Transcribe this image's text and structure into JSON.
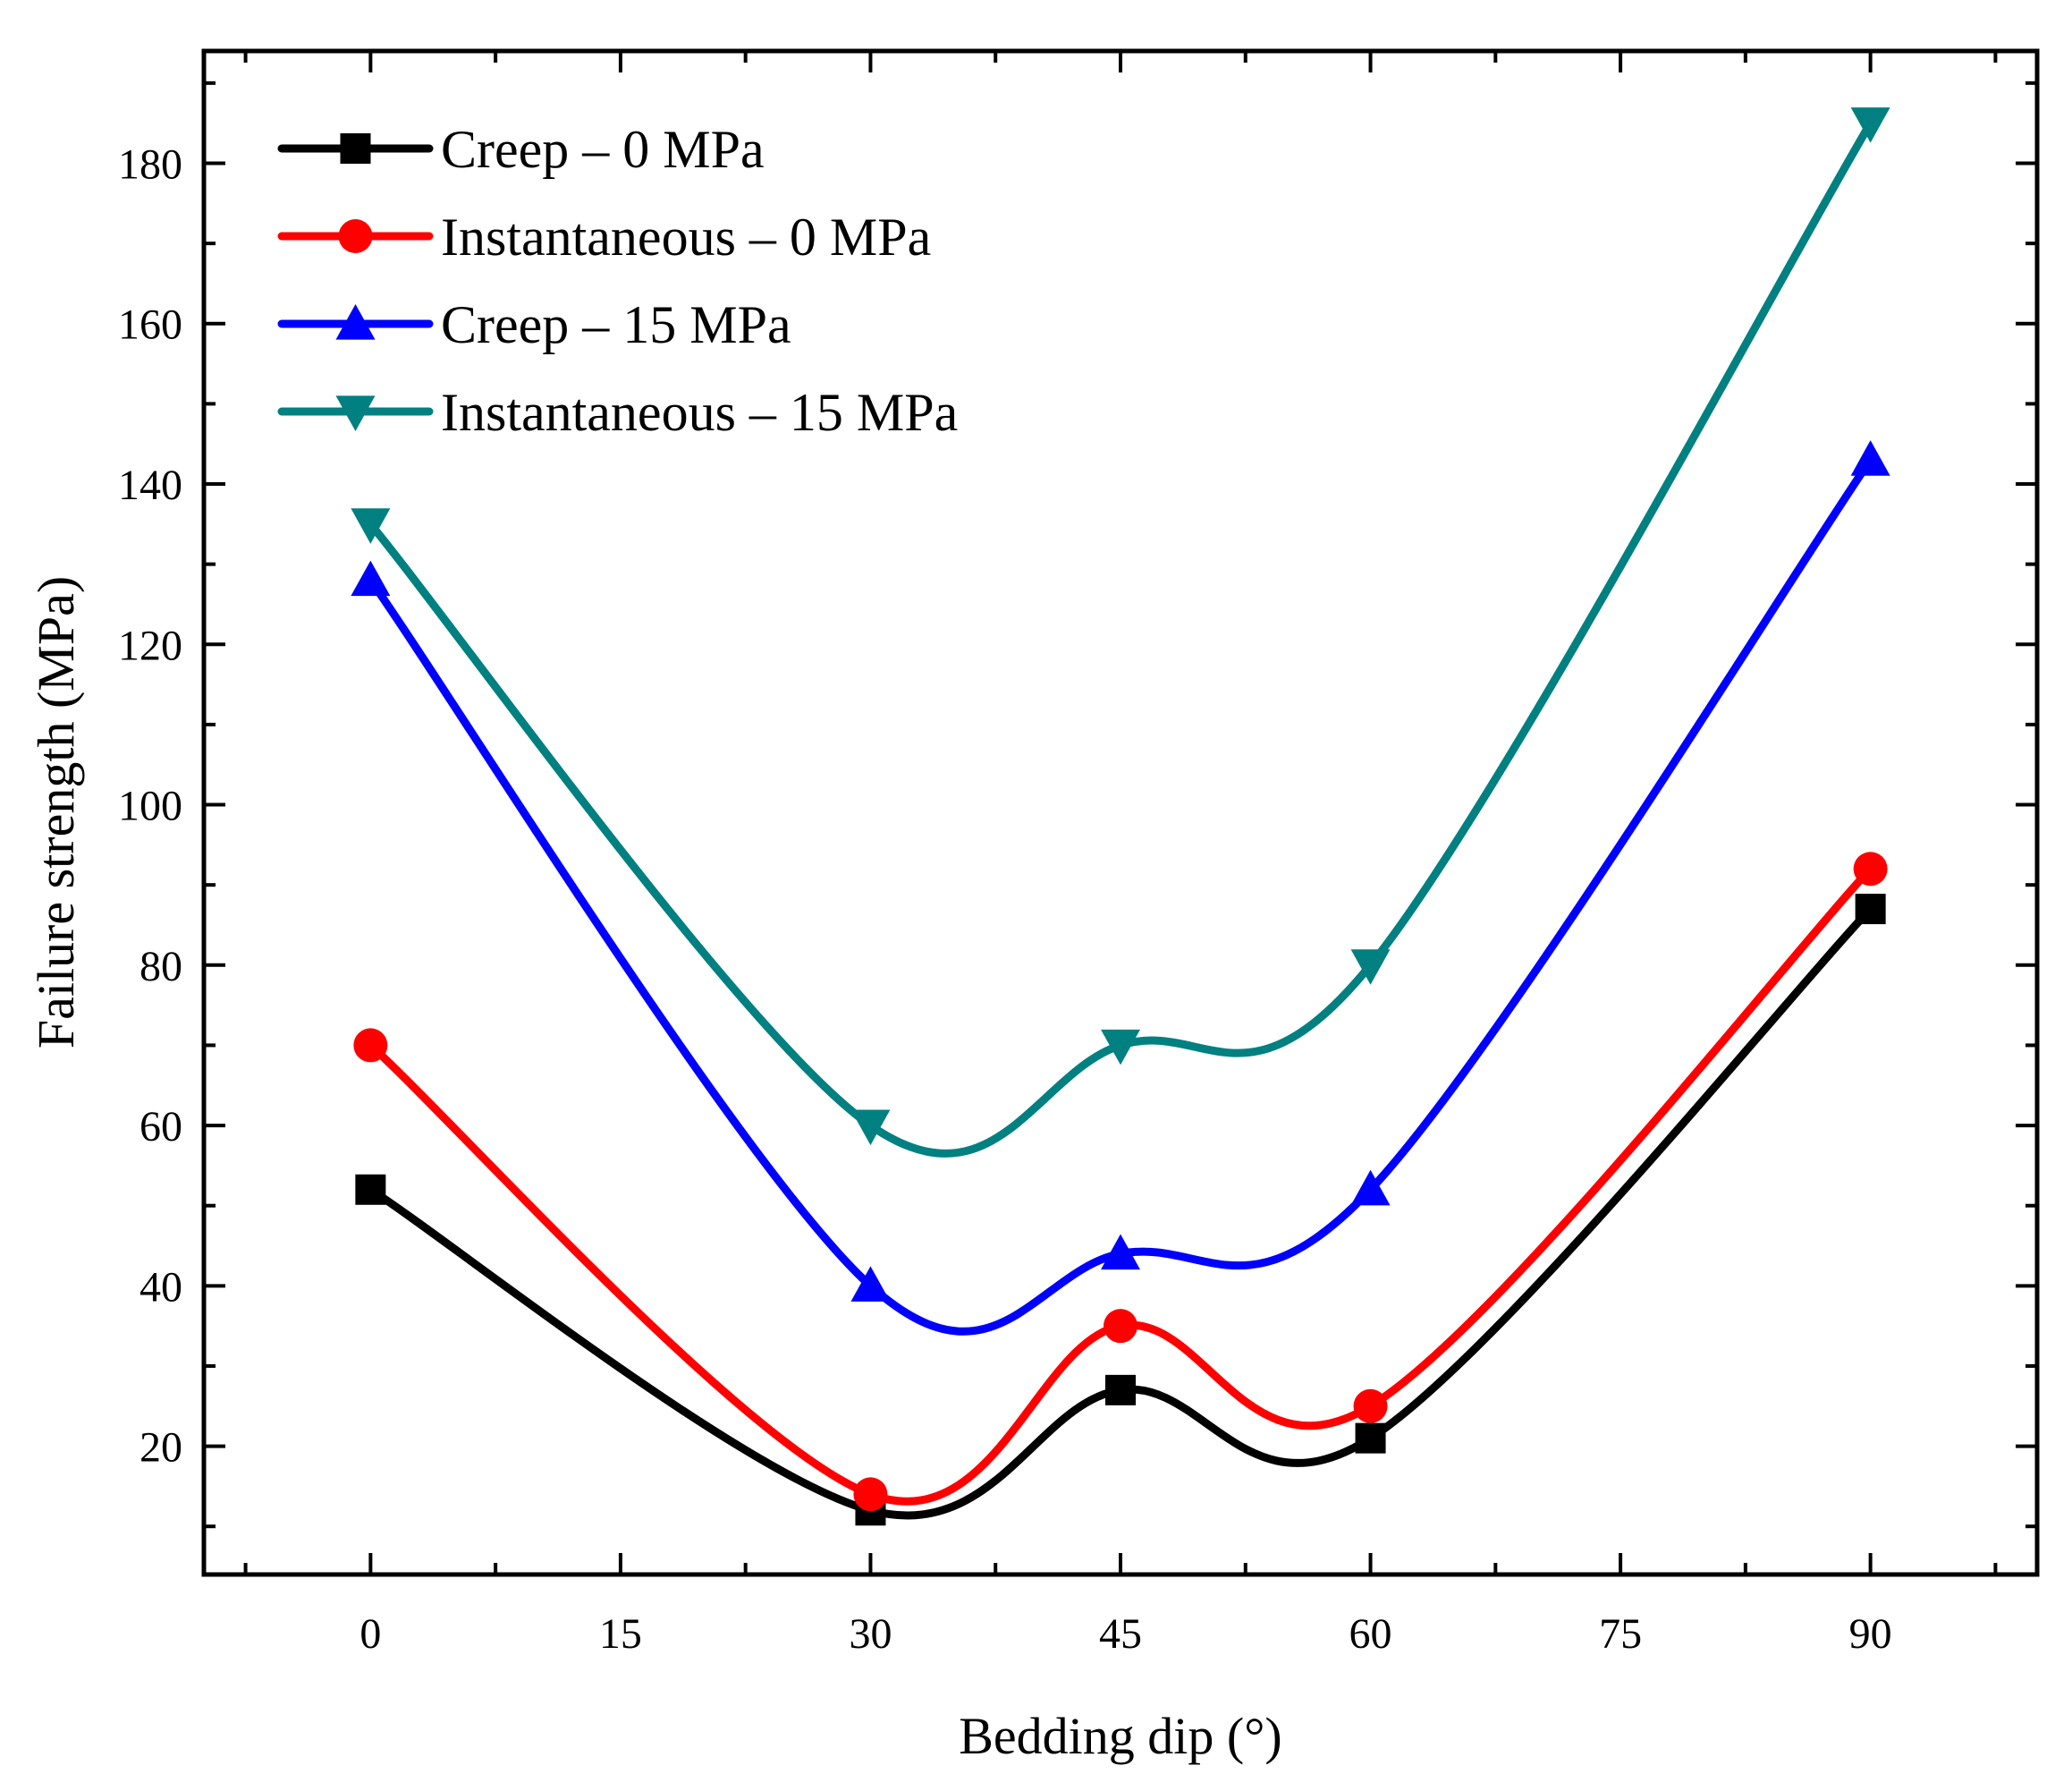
{
  "chart_data": {
    "type": "line",
    "title": "",
    "xlabel": "Bedding dip (°)",
    "ylabel": "Failure strength (MPa)",
    "xlim": [
      -10,
      100
    ],
    "ylim": [
      4,
      194
    ],
    "x_ticks": [
      0,
      15,
      30,
      45,
      60,
      75,
      90
    ],
    "y_ticks": [
      20,
      40,
      60,
      80,
      100,
      120,
      140,
      160,
      180
    ],
    "grid": false,
    "legend_position": "top-left",
    "x": [
      0,
      30,
      45,
      60,
      90
    ],
    "series": [
      {
        "name": "Creep – 0 MPa",
        "values": [
          52,
          12,
          27,
          21,
          87
        ],
        "color": "#000000",
        "marker": "square"
      },
      {
        "name": "Instantaneous – 0 MPa",
        "values": [
          70,
          14,
          35,
          25,
          92
        ],
        "color": "#ff0000",
        "marker": "circle"
      },
      {
        "name": "Creep – 15 MPa",
        "values": [
          128,
          40,
          44,
          52,
          143
        ],
        "color": "#0000ff",
        "marker": "triangle-up"
      },
      {
        "name": "Instantaneous – 15 MPa",
        "values": [
          135,
          60,
          70,
          80,
          185
        ],
        "color": "#008080",
        "marker": "triangle-down"
      }
    ]
  }
}
